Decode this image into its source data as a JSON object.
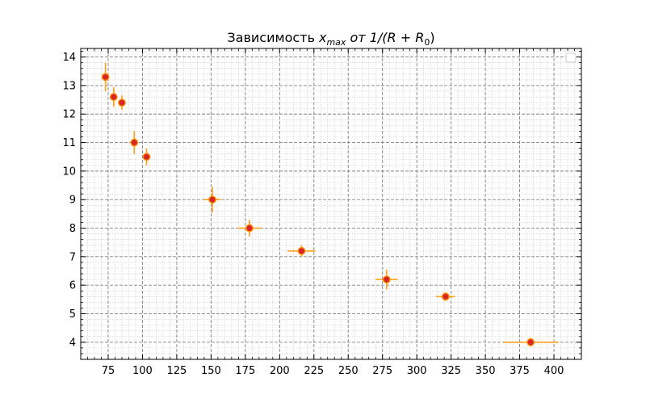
{
  "chart_data": {
    "type": "scatter",
    "title_main": "Зависимость ",
    "title_math_var": "x",
    "title_math_sub": "max",
    "title_mid": "  от  ",
    "title_expr": "1/(R + R",
    "title_expr_sub": "0",
    "title_expr_end": ")",
    "xlabel": "",
    "ylabel": "",
    "xlim": [
      55,
      420
    ],
    "ylim": [
      3.4,
      14.3
    ],
    "xticks": [
      75,
      100,
      125,
      150,
      175,
      200,
      225,
      250,
      275,
      300,
      325,
      350,
      375,
      400
    ],
    "yticks": [
      4,
      5,
      6,
      7,
      8,
      9,
      10,
      11,
      12,
      13,
      14
    ],
    "grid": true,
    "legend": "top-right, empty",
    "colors": {
      "marker_face": "#d62728",
      "marker_edge": "#ff8c00",
      "errorbar": "#ff9f1a",
      "major_grid": "#808080",
      "minor_grid": "#c8c8c8"
    },
    "points": [
      {
        "x": 73,
        "y": 13.3,
        "xerr": 1.0,
        "yerr": 0.5
      },
      {
        "x": 79,
        "y": 12.6,
        "xerr": 1.5,
        "yerr": 0.35
      },
      {
        "x": 85,
        "y": 12.4,
        "xerr": 2.0,
        "yerr": 0.25
      },
      {
        "x": 94,
        "y": 11.0,
        "xerr": 2.5,
        "yerr": 0.4
      },
      {
        "x": 103,
        "y": 10.5,
        "xerr": 2.5,
        "yerr": 0.3
      },
      {
        "x": 151,
        "y": 9.0,
        "xerr": 6.0,
        "yerr": 0.45
      },
      {
        "x": 178,
        "y": 8.0,
        "xerr": 8.5,
        "yerr": 0.3
      },
      {
        "x": 216,
        "y": 7.2,
        "xerr": 10.0,
        "yerr": 0.2
      },
      {
        "x": 278,
        "y": 6.2,
        "xerr": 8.0,
        "yerr": 0.35
      },
      {
        "x": 321,
        "y": 5.6,
        "xerr": 7.0,
        "yerr": 0.15
      },
      {
        "x": 383,
        "y": 4.0,
        "xerr": 20.0,
        "yerr": 0.15
      }
    ]
  }
}
